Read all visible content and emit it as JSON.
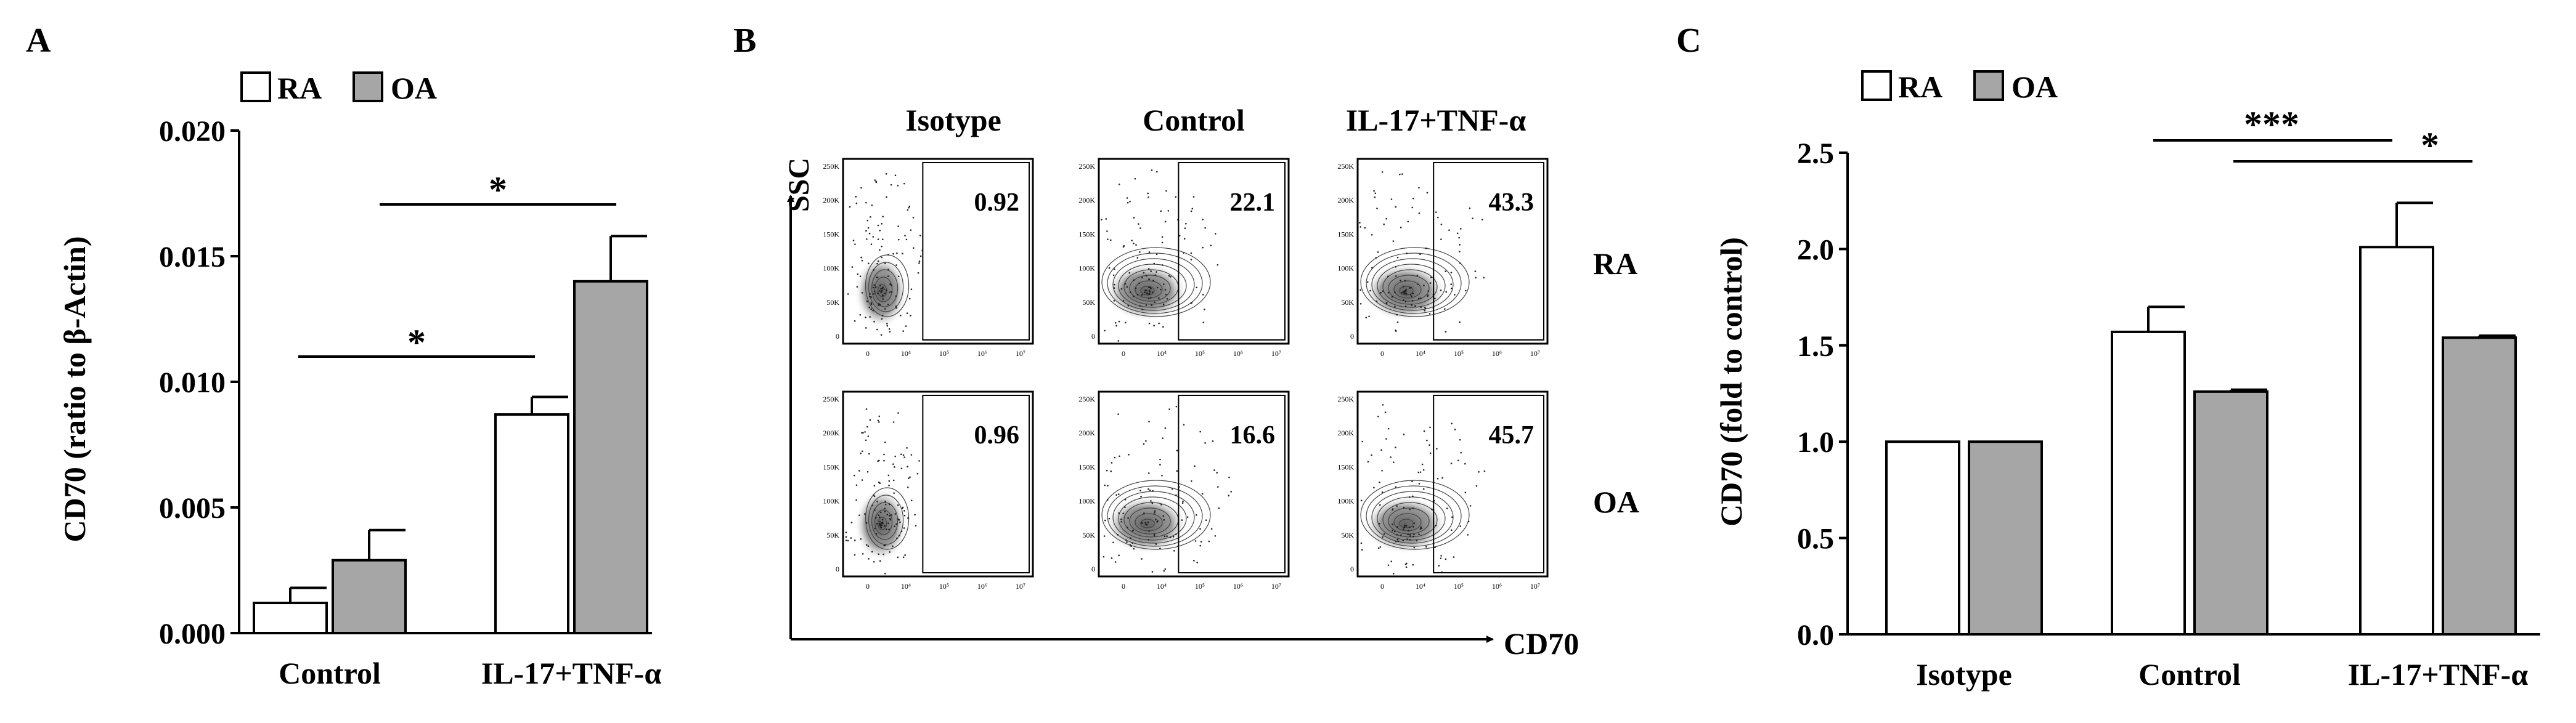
{
  "panels": {
    "A": {
      "letter": "A",
      "legend": [
        "RA",
        "OA"
      ],
      "significance": [
        "*",
        "*"
      ]
    },
    "B": {
      "letter": "B",
      "col_titles": [
        "Isotype",
        "Control",
        "IL-17+TNF-α"
      ],
      "row_labels": [
        "RA",
        "OA"
      ],
      "y_axis": "SSC",
      "x_axis": "CD70",
      "gate_values": [
        [
          "0.92",
          "22.1",
          "43.3"
        ],
        [
          "0.96",
          "16.6",
          "45.7"
        ]
      ],
      "y_ticks_small": [
        "250K",
        "200K",
        "150K",
        "100K",
        "50K",
        "0"
      ],
      "x_ticks_small": [
        "0",
        "10⁴",
        "10⁵",
        "10⁶",
        "10⁷"
      ]
    },
    "C": {
      "letter": "C",
      "legend": [
        "RA",
        "OA"
      ],
      "significance": [
        "***",
        "*"
      ]
    }
  },
  "chart_data": [
    {
      "id": "A",
      "type": "bar",
      "categories": [
        "Control",
        "IL-17+TNF-α"
      ],
      "series": [
        {
          "name": "RA",
          "values": [
            0.0012,
            0.0087
          ],
          "errors": [
            0.0006,
            0.0007
          ],
          "fill": "#ffffff"
        },
        {
          "name": "OA",
          "values": [
            0.0029,
            0.014
          ],
          "errors": [
            0.0012,
            0.0018
          ],
          "fill": "#a6a6a6"
        }
      ],
      "title": "",
      "xlabel": "",
      "ylabel": "CD70 (ratio to β-Actin)",
      "ylim": [
        0,
        0.02
      ],
      "yticks": [
        "0.000",
        "0.005",
        "0.010",
        "0.015",
        "0.020"
      ],
      "legend_position": "top-left",
      "annotations": [
        {
          "text": "*",
          "between": "Control RA – IL-17+TNF-α RA"
        },
        {
          "text": "*",
          "between": "Control OA – IL-17+TNF-α OA"
        }
      ]
    },
    {
      "id": "C",
      "type": "bar",
      "categories": [
        "Isotype",
        "Control",
        "IL-17+TNF-α"
      ],
      "series": [
        {
          "name": "RA",
          "values": [
            1.0,
            1.57,
            2.01
          ],
          "errors": [
            0,
            0.13,
            0.23
          ],
          "fill": "#ffffff"
        },
        {
          "name": "OA",
          "values": [
            1.0,
            1.26,
            1.54
          ],
          "errors": [
            0,
            0.01,
            0.01
          ],
          "fill": "#a6a6a6"
        }
      ],
      "title": "",
      "xlabel": "",
      "ylabel": "CD70 (fold to control)",
      "ylim": [
        0,
        2.5
      ],
      "yticks": [
        "0.0",
        "0.5",
        "1.0",
        "1.5",
        "2.0",
        "2.5"
      ],
      "legend_position": "top-left",
      "annotations": [
        {
          "text": "***",
          "between": "Control RA – IL-17+TNF-α RA"
        },
        {
          "text": "*",
          "between": "Control OA – IL-17+TNF-α OA"
        }
      ]
    }
  ]
}
